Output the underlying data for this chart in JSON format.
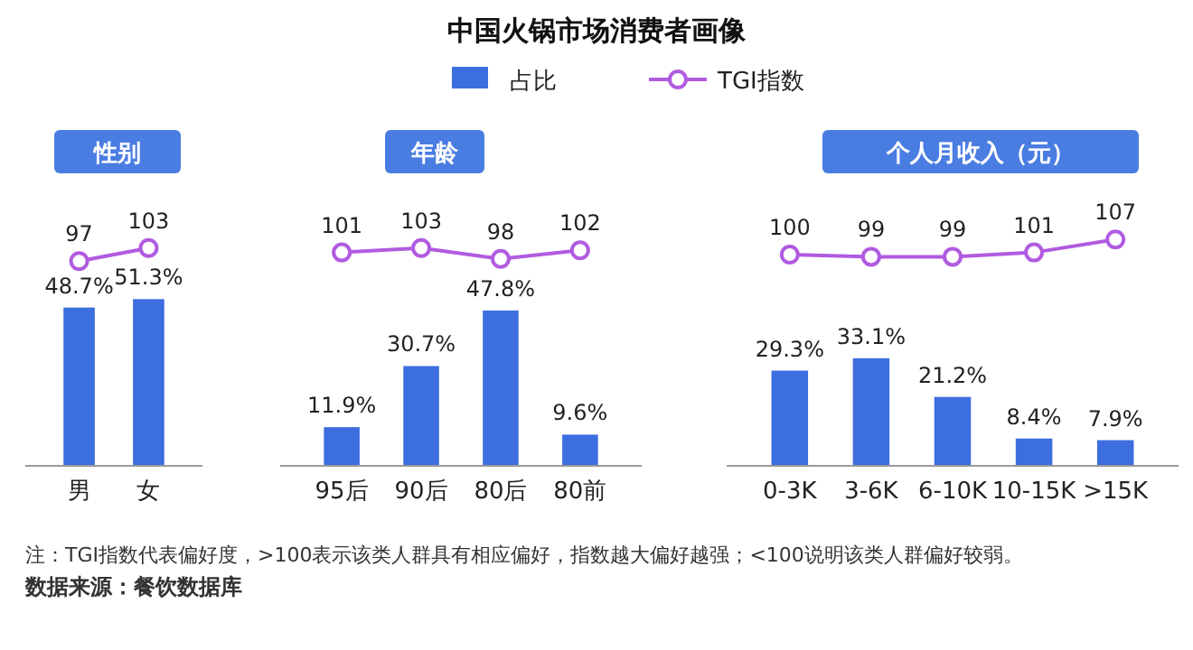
{
  "chart_data": [
    {
      "type": "other",
      "title": "中国火锅市场消费者画像",
      "annotations": [
        "注：TGI指数代表偏好度，>100表示该类人群具有相应偏好，指数越大偏好越强；<100说明该类人群偏好较弱。",
        "数据来源：餐饮数据库"
      ]
    },
    {
      "type": "bar",
      "categories": [
        "男",
        "女"
      ],
      "legend": "top",
      "series": [
        {
          "name": "占比",
          "color": "#3d6ee0",
          "values": [
            48.7,
            51.3
          ],
          "value_labels": [
            "48.7%",
            "51.3%"
          ]
        }
      ]
    },
    {
      "type": "line",
      "title": "性别",
      "categories": [
        null,
        null
      ],
      "legend": "top",
      "marker": "circle",
      "series": [
        {
          "name": "TGI指数",
          "color": "#b05be0",
          "values": [
            97,
            103
          ],
          "value_labels": [
            "97",
            "103"
          ]
        }
      ]
    },
    {
      "type": "bar",
      "categories": [
        "95后",
        "90后",
        "80后",
        "80前"
      ],
      "series": [
        {
          "color": "#3d6ee0",
          "values": [
            11.9,
            30.7,
            47.8,
            9.6
          ],
          "value_labels": [
            "11.9%",
            "30.7%",
            "47.8%",
            "9.6%"
          ]
        }
      ]
    },
    {
      "type": "line",
      "title": "年龄",
      "categories": [
        null,
        null,
        null,
        null
      ],
      "marker": "circle",
      "series": [
        {
          "color": "#b05be0",
          "values": [
            101,
            103,
            98,
            102
          ],
          "value_labels": [
            "101",
            "103",
            "98",
            "102"
          ]
        }
      ]
    },
    {
      "type": "bar",
      "categories": [
        "0-3K",
        "3-6K",
        "6-10K",
        "10-15K",
        ">15K"
      ],
      "series": [
        {
          "color": "#3d6ee0",
          "values": [
            29.3,
            33.1,
            21.2,
            8.4,
            7.9
          ],
          "value_labels": [
            "29.3%",
            "33.1%",
            "21.2%",
            "8.4%",
            "7.9%"
          ]
        }
      ]
    },
    {
      "type": "line",
      "title": "个人月收入（元）",
      "categories": [
        null,
        null,
        null,
        null,
        null
      ],
      "marker": "circle",
      "series": [
        {
          "color": "#b05be0",
          "values": [
            100,
            99,
            99,
            101,
            107
          ],
          "value_labels": [
            "100",
            "99",
            "99",
            "101",
            "107"
          ]
        }
      ]
    }
  ]
}
